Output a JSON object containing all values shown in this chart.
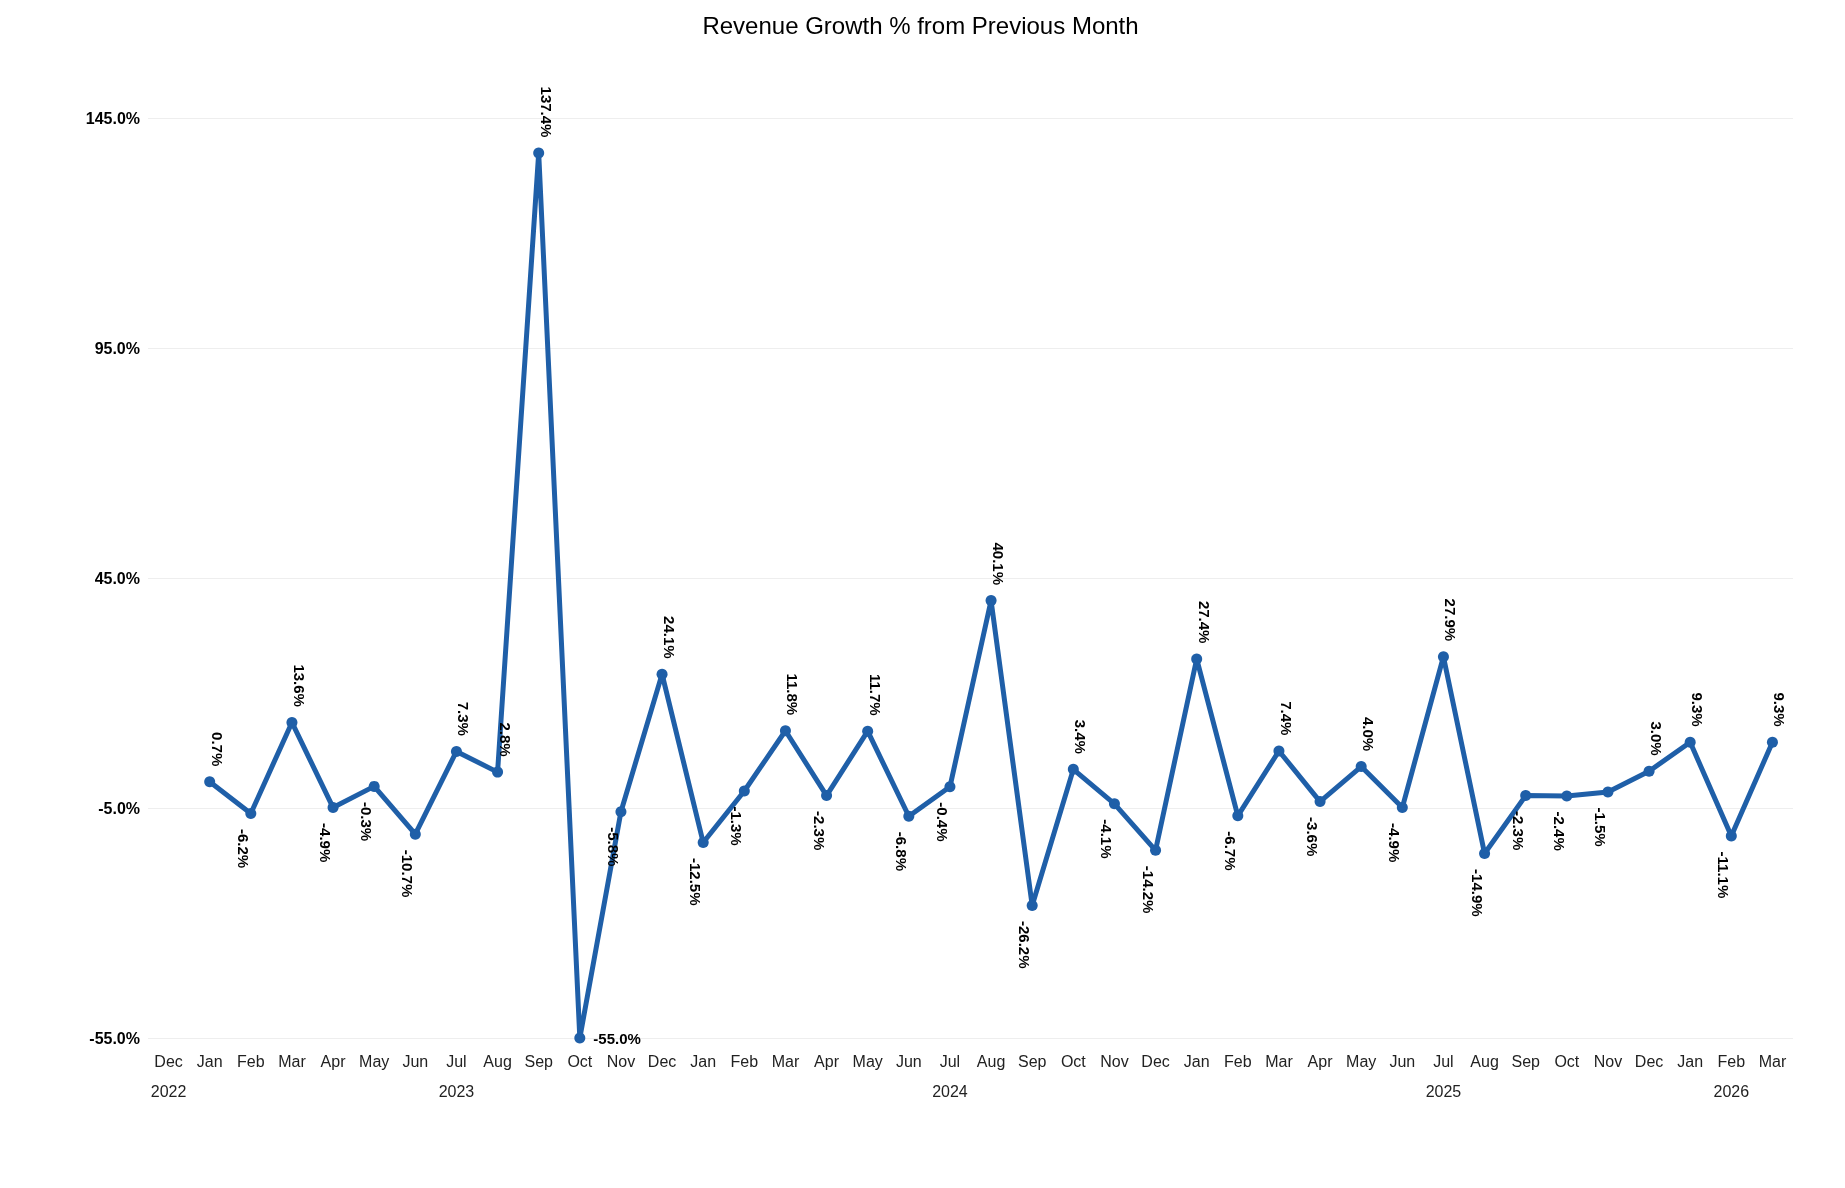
{
  "chart_data": {
    "type": "line",
    "title": "Revenue Growth % from Previous Month",
    "categories": [
      "Dec\n2022",
      "Jan",
      "Feb",
      "Mar",
      "Apr",
      "May",
      "Jun",
      "Jul\n2023",
      "Aug",
      "Sep",
      "Oct",
      "Nov",
      "Dec",
      "Jan",
      "Feb",
      "Mar",
      "Apr",
      "May",
      "Jun",
      "Jul\n2024",
      "Aug",
      "Sep",
      "Oct",
      "Nov",
      "Dec",
      "Jan",
      "Feb",
      "Mar",
      "Apr",
      "May",
      "Jun",
      "Jul\n2025",
      "Aug",
      "Sep",
      "Oct",
      "Nov",
      "Dec",
      "Jan",
      "Feb\n2026",
      "Mar"
    ],
    "series": [
      {
        "color": "#1f5fa8",
        "values": [
          null,
          0.7,
          -6.2,
          13.6,
          -4.9,
          -0.3,
          -10.7,
          7.3,
          2.8,
          137.4,
          -55.0,
          -5.8,
          24.1,
          -12.5,
          -1.3,
          11.8,
          -2.3,
          11.7,
          -6.8,
          -0.4,
          40.1,
          -26.2,
          3.4,
          -4.1,
          -14.2,
          27.4,
          -6.7,
          7.4,
          -3.6,
          4.0,
          -4.9,
          27.9,
          -14.9,
          -2.3,
          -2.4,
          -1.5,
          3.0,
          9.3,
          -11.1,
          9.3
        ],
        "value_labels": [
          null,
          "0.7%",
          "-6.2%",
          "13.6%",
          "-4.9%",
          "-0.3%",
          "-10.7%",
          "7.3%",
          "2.8%",
          "137.4%",
          "-55.0%",
          "-5.8%",
          "24.1%",
          "-12.5%",
          "-1.3%",
          "11.8%",
          "-2.3%",
          "11.7%",
          "-6.8%",
          "-0.4%",
          "40.1%",
          "-26.2%",
          "3.4%",
          "-4.1%",
          "-14.2%",
          "27.4%",
          "-6.7%",
          "7.4%",
          "-3.6%",
          "4.0%",
          "-4.9%",
          "27.9%",
          "-14.9%",
          "-2.3%",
          "-2.4%",
          "-1.5%",
          "3.0%",
          "9.3%",
          "-11.1%",
          "9.3%"
        ]
      }
    ],
    "ylim": [
      -55,
      145
    ],
    "yticks": [
      {
        "value": -55,
        "label": "-55.0%"
      },
      {
        "value": -5,
        "label": "-5.0%"
      },
      {
        "value": 45,
        "label": "45.0%"
      },
      {
        "value": 95,
        "label": "95.0%"
      },
      {
        "value": 145,
        "label": "145.0%"
      }
    ],
    "grid": "y",
    "marker": "circle",
    "line_style": "solid"
  }
}
